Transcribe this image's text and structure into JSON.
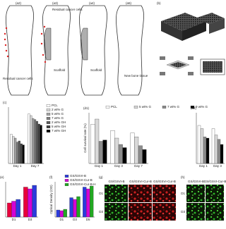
{
  "panels": [
    "(a2)",
    "(a3)",
    "(a4)",
    "(a5)",
    "(b)"
  ],
  "bone_annotations": [
    "Residual cancer cells",
    "Residual cancer cells",
    "Scaffold",
    "Scaffold",
    "New bone tissue"
  ],
  "charts": [
    {
      "label": "(c)",
      "type": "bar",
      "categories": [
        "Day 1",
        "Day 7"
      ],
      "ylim": [
        0,
        100
      ],
      "series": [
        {
          "name": "PCL",
          "color": "#ffffff",
          "values": [
            52,
            88
          ]
        },
        {
          "name": "2 wt% G",
          "color": "#d9d9d9",
          "values": [
            48,
            85
          ]
        },
        {
          "name": "5 wt% G",
          "color": "#a6a6a6",
          "values": [
            45,
            80
          ]
        },
        {
          "name": "7 wt% G",
          "color": "#7f7f7f",
          "values": [
            38,
            78
          ]
        },
        {
          "name": "2 wt% GH",
          "color": "#595959",
          "values": [
            40,
            75
          ]
        },
        {
          "name": "5 wt% GH",
          "color": "#404040",
          "values": [
            35,
            70
          ]
        },
        {
          "name": "7 wt% GH",
          "color": "#000000",
          "values": [
            33,
            68
          ]
        }
      ]
    },
    {
      "label": "(d1)",
      "type": "bar",
      "categories": [
        "Day 1",
        "Day 3",
        "Day 7"
      ],
      "ylim": [
        0,
        80
      ],
      "ylabel": "Cell survival rate (%)",
      "series": [
        {
          "name": "PCL",
          "color": "#ffffff",
          "values": [
            62,
            52,
            48
          ]
        },
        {
          "name": "5 wt% G",
          "color": "#d9d9d9",
          "values": [
            70,
            40,
            42
          ]
        },
        {
          "name": "7 wt% G",
          "color": "#8c8c8c",
          "values": [
            35,
            30,
            28
          ]
        },
        {
          "name": "9 wt% G",
          "color": "#000000",
          "values": [
            37,
            25,
            22
          ]
        }
      ]
    },
    {
      "label": "(d2)",
      "type": "bar",
      "categories": [
        "Day 1",
        "Day 3"
      ],
      "ylim": [
        0,
        80
      ],
      "series": [
        {
          "color": "#ffffff",
          "values": [
            60,
            55
          ]
        },
        {
          "color": "#d9d9d9",
          "values": [
            55,
            45
          ]
        },
        {
          "color": "#8c8c8c",
          "values": [
            42,
            38
          ]
        },
        {
          "color": "#000000",
          "values": [
            40,
            30
          ]
        }
      ]
    },
    {
      "label": "(e)",
      "type": "bar",
      "categories": [
        "D1",
        "D3"
      ],
      "ylim": [
        0,
        100
      ],
      "series": [
        {
          "color": "#e8003c",
          "values": [
            40,
            85
          ]
        },
        {
          "color": "#d400d4",
          "values": [
            45,
            80
          ]
        },
        {
          "color": "#2b3bdc",
          "values": [
            50,
            90
          ]
        }
      ]
    },
    {
      "label": "(f)",
      "type": "bar",
      "categories": [
        "D1",
        "D3",
        "D5"
      ],
      "ylim": [
        0,
        100
      ],
      "ylabel": "Optical Density (OD)",
      "series": [
        {
          "name": "GS/GSVI-B",
          "color": "#2b3bdc",
          "values": [
            20,
            55,
            85
          ]
        },
        {
          "name": "GS/GSVI-Cur-B",
          "color": "#d400d4",
          "values": [
            18,
            50,
            80
          ]
        },
        {
          "name": "GS/GSVI-Cur-B-H",
          "color": "#22a822",
          "values": [
            22,
            58,
            88
          ]
        }
      ]
    }
  ],
  "images": [
    {
      "label": "(g)",
      "headers": [
        "GS/GSVI-B",
        "GS/GSVI-Cur-B",
        "GS/GSVI-Cur-B"
      ],
      "rows": [
        "D1",
        "D3"
      ]
    },
    {
      "label": "(h)",
      "headers": [
        "GS/GSVI-B",
        "GS/GSVI-Cur-B"
      ],
      "rows": [
        "D1",
        "D3"
      ]
    }
  ]
}
